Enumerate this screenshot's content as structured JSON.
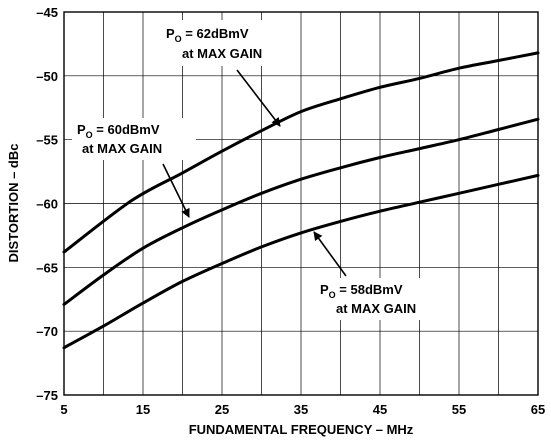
{
  "chart_data": {
    "type": "line",
    "title": "",
    "xlabel": "FUNDAMENTAL FREQUENCY – MHz",
    "ylabel": "DISTORTION – dBc",
    "xlim": [
      5,
      65
    ],
    "ylim": [
      -75,
      -45
    ],
    "xticks": [
      5,
      15,
      25,
      35,
      45,
      55,
      65
    ],
    "yticks": [
      -75,
      -70,
      -65,
      -60,
      -55,
      -50,
      -45
    ],
    "xtick_labels": [
      "5",
      "15",
      "25",
      "35",
      "45",
      "55",
      "65"
    ],
    "ytick_labels": [
      "–75",
      "–70",
      "–65",
      "–60",
      "–55",
      "–50",
      "–45"
    ],
    "grid": true,
    "series": [
      {
        "x": [
          5,
          13.5,
          20,
          25,
          30,
          35,
          40,
          45,
          50,
          55,
          60,
          65
        ],
        "y": [
          -63.8,
          -59.8,
          -57.6,
          -55.9,
          -54.3,
          -52.8,
          -51.8,
          -50.9,
          -50.2,
          -49.4,
          -48.8,
          -48.2
        ]
      },
      {
        "x": [
          5,
          10,
          15,
          20,
          25,
          30,
          35,
          40,
          45,
          50,
          55,
          60,
          65
        ],
        "y": [
          -67.9,
          -65.6,
          -63.5,
          -61.9,
          -60.5,
          -59.2,
          -58.1,
          -57.2,
          -56.4,
          -55.7,
          -55.0,
          -54.2,
          -53.4
        ]
      },
      {
        "x": [
          5,
          10,
          15,
          20,
          25,
          30,
          35,
          40,
          45,
          50,
          55,
          60,
          65
        ],
        "y": [
          -71.3,
          -69.6,
          -67.8,
          -66.1,
          -64.7,
          -63.4,
          -62.3,
          -61.4,
          -60.6,
          -59.9,
          -59.2,
          -58.5,
          -57.8
        ]
      }
    ],
    "annotations": [
      {
        "line1_main": "P",
        "line1_sub": "O",
        "line1_rest": " = 62dBmV",
        "line2": "at MAX GAIN"
      },
      {
        "line1_main": "P",
        "line1_sub": "O",
        "line1_rest": " = 60dBmV",
        "line2": "at MAX GAIN"
      },
      {
        "line1_main": "P",
        "line1_sub": "O",
        "line1_rest": " = 58dBmV",
        "line2": "at MAX GAIN"
      }
    ]
  }
}
